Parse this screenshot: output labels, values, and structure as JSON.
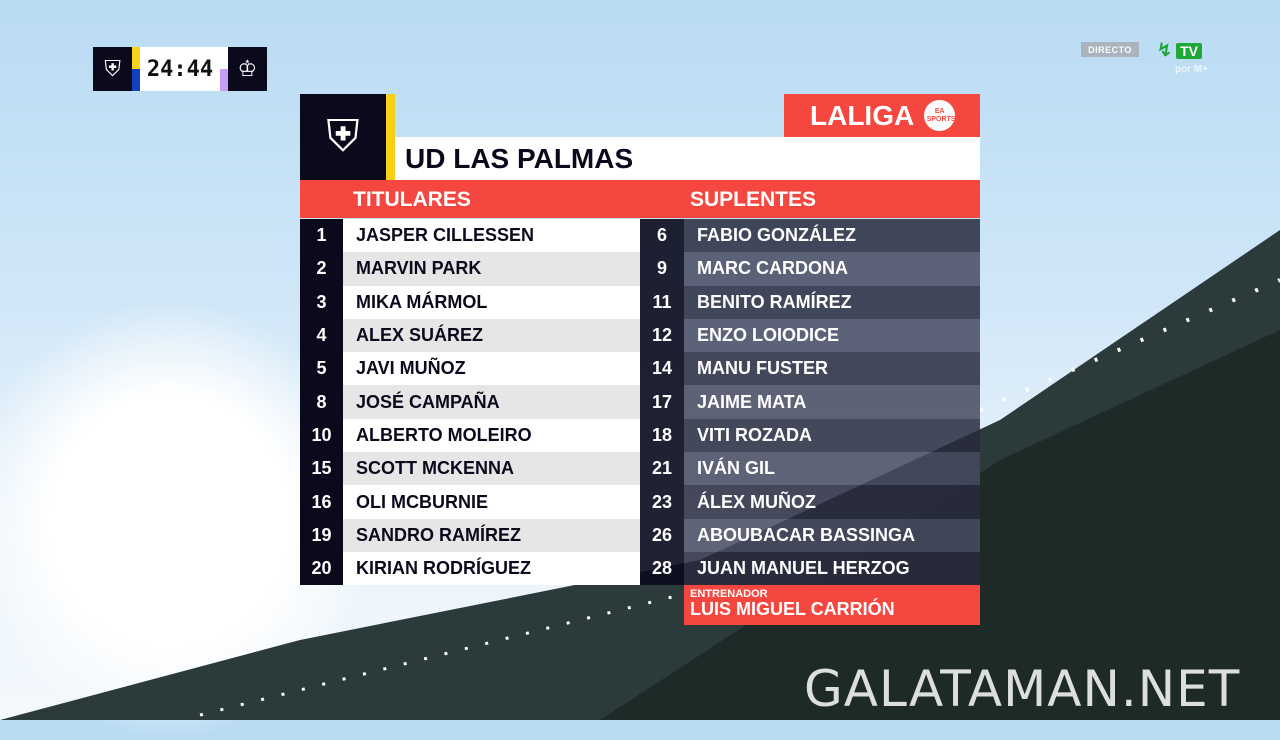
{
  "scoreboard": {
    "time": "24:44",
    "home_crest_icon": "las-palmas-crest-icon",
    "away_crest_icon": "real-madrid-crest-icon"
  },
  "broadcast": {
    "live_label": "DIRECTO",
    "channel": "TV",
    "channel_sub": "por M+"
  },
  "league": {
    "name": "LALIGA",
    "sponsor": "EA SPORTS",
    "accent": "#f5473f"
  },
  "team": {
    "name": "UD LAS PALMAS"
  },
  "starters": {
    "label": "TITULARES",
    "players": [
      {
        "number": "1",
        "name": "JASPER CILLESSEN"
      },
      {
        "number": "2",
        "name": "MARVIN PARK"
      },
      {
        "number": "3",
        "name": "MIKA MÁRMOL"
      },
      {
        "number": "4",
        "name": "ALEX SUÁREZ"
      },
      {
        "number": "5",
        "name": "JAVI MUÑOZ"
      },
      {
        "number": "8",
        "name": "JOSÉ CAMPAÑA"
      },
      {
        "number": "10",
        "name": "ALBERTO MOLEIRO"
      },
      {
        "number": "15",
        "name": "SCOTT MCKENNA"
      },
      {
        "number": "16",
        "name": "OLI MCBURNIE"
      },
      {
        "number": "19",
        "name": "SANDRO RAMÍREZ"
      },
      {
        "number": "20",
        "name": "KIRIAN RODRÍGUEZ"
      }
    ]
  },
  "subs": {
    "label": "SUPLENTES",
    "players": [
      {
        "number": "6",
        "name": "FABIO GONZÁLEZ"
      },
      {
        "number": "9",
        "name": "MARC CARDONA"
      },
      {
        "number": "11",
        "name": "BENITO RAMÍREZ"
      },
      {
        "number": "12",
        "name": "ENZO LOIODICE"
      },
      {
        "number": "14",
        "name": "MANU FUSTER"
      },
      {
        "number": "17",
        "name": "JAIME MATA"
      },
      {
        "number": "18",
        "name": "VITI ROZADA"
      },
      {
        "number": "21",
        "name": "IVÁN GIL"
      },
      {
        "number": "23",
        "name": "ÁLEX MUÑOZ"
      },
      {
        "number": "26",
        "name": "ABOUBACAR BASSINGA"
      },
      {
        "number": "28",
        "name": "JUAN MANUEL HERZOG"
      }
    ]
  },
  "coach": {
    "label": "ENTRENADOR",
    "name": "LUIS MIGUEL CARRIÓN"
  },
  "watermark": "GALATAMAN.NET"
}
